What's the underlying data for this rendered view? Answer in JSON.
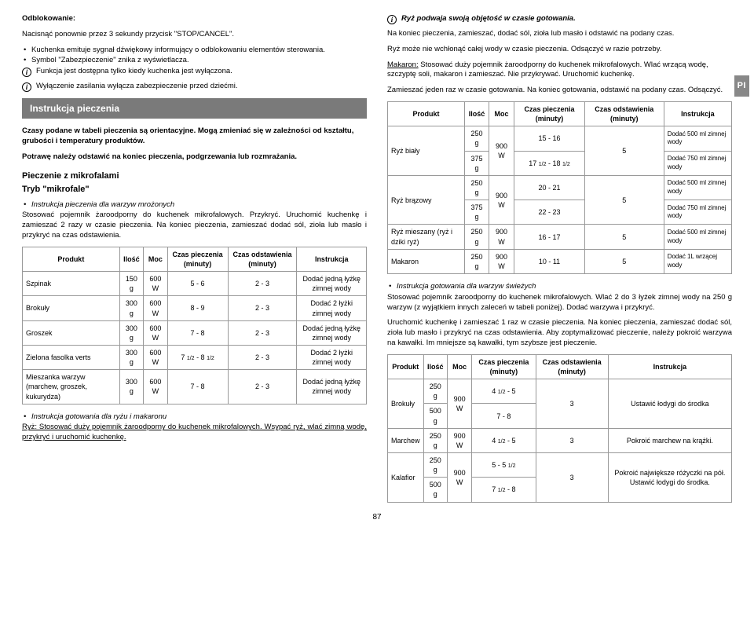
{
  "lang_tab": "PI",
  "left": {
    "unlock_title": "Odblokowanie:",
    "unlock_text": "Nacisnąć ponownie przez 3 sekundy przycisk \"STOP/CANCEL\".",
    "unlock_b1": "Kuchenka emituje sygnał dźwiękowy informujący o odblokowaniu elementów sterowania.",
    "unlock_b2": "Symbol \"Zabezpieczenie\" znika z wyświetlacza.",
    "info1": "Funkcja jest dostępna tylko kiedy kuchenka jest wyłączona.",
    "info2": "Wyłączenie zasilania wyłącza zabezpieczenie przed dziećmi.",
    "section": "Instrukcja pieczenia",
    "p1": "Czasy podane w tabeli pieczenia są orientacyjne. Mogą zmieniać się w zależności od kształtu, grubości i temperatury produktów.",
    "p2": "Potrawę należy odstawić na koniec pieczenia, podgrzewania lub rozmrażania.",
    "sub1a": "Pieczenie z mikrofalami",
    "sub1b": "Tryb \"mikrofale\"",
    "b1": "Instrukcja pieczenia dla warzyw mrożonych",
    "p3": "Stosować pojemnik żaroodporny do kuchenek mikrofalowych. Przykryć. Uruchomić kuchenkę i zamieszać 2 razy w czasie pieczenia. Na koniec pieczenia, zamieszać dodać sól, zioła lub masło i przykryć na czas odstawienia.",
    "table1": {
      "headers": [
        "Produkt",
        "Ilość",
        "Moc",
        "Czas pieczenia (minuty)",
        "Czas odstawienia (minuty)",
        "Instrukcja"
      ],
      "rows": [
        [
          "Szpinak",
          "150 g",
          "600 W",
          "5 - 6",
          "2 - 3",
          "Dodać jedną łyżkę zimnej wody"
        ],
        [
          "Brokuły",
          "300 g",
          "600 W",
          "8 - 9",
          "2 - 3",
          "Dodać 2 łyżki zimnej wody"
        ],
        [
          "Groszek",
          "300 g",
          "600 W",
          "7 - 8",
          "2 - 3",
          "Dodać jedną łyżkę zimnej wody"
        ],
        [
          "Zielona fasolka verts",
          "300 g",
          "600 W",
          "7 1/2 - 8 1/2",
          "2 - 3",
          "Dodać 2 łyżki zimnej wody"
        ],
        [
          "Mieszanka warzyw (marchew, groszek, kukurydza)",
          "300 g",
          "600 W",
          "7 - 8",
          "2 - 3",
          "Dodać jedną łyżkę zimnej wody"
        ]
      ]
    },
    "b2": "Instrukcja gotowania dla ryżu i makaronu",
    "p4": "Ryż: Stosować duży pojemnik żaroodporny do kuchenek mikrofalowych. Wsypać ryż, wlać zimną wodę, przykryć i uruchomić kuchenkę."
  },
  "right": {
    "info1": "Ryż podwaja swoją objętość w czasie gotowania.",
    "p1": "Na koniec pieczenia, zamieszać, dodać sól, zioła lub masło i odstawić na podany czas.",
    "p2": "Ryż może nie wchłonąć całej wody w czasie pieczenia. Odsączyć w razie potrzeby.",
    "p3": "Makaron: Stosować duży pojemnik żaroodporny do kuchenek mikrofalowych. Wlać wrzącą wodę, szczyptę soli, makaron i zamieszać. Nie przykrywać. Uruchomić kuchenkę.",
    "p4": "Zamieszać jeden raz w czasie gotowania. Na koniec gotowania, odstawić na podany czas. Odsączyć.",
    "table2": {
      "headers": [
        "Produkt",
        "Ilość",
        "Moc",
        "Czas pieczenia (minuty)",
        "Czas odstawienia (minuty)",
        "Instrukcja"
      ],
      "rows": [
        {
          "prod": "Ryż biały",
          "qty": [
            "250 g",
            "375 g"
          ],
          "pw": "900 W",
          "time": [
            "15 - 16",
            "17 1/2 - 18 1/2"
          ],
          "rest": "5",
          "instr": [
            "Dodać 500 ml zimnej wody",
            "Dodać 750 ml zimnej wody"
          ]
        },
        {
          "prod": "Ryż brązowy",
          "qty": [
            "250 g",
            "375 g"
          ],
          "pw": "900 W",
          "time": [
            "20 - 21",
            "22 - 23"
          ],
          "rest": "5",
          "instr": [
            "Dodać 500 ml zimnej wody",
            "Dodać 750 ml zimnej wody"
          ]
        },
        {
          "prod": "Ryż mieszany (ryż i dziki ryż)",
          "qty": [
            "250 g"
          ],
          "pw": "900 W",
          "time": [
            "16 - 17"
          ],
          "rest": "5",
          "instr": [
            "Dodać 500 ml zimnej wody"
          ]
        },
        {
          "prod": "Makaron",
          "qty": [
            "250 g"
          ],
          "pw": "900 W",
          "time": [
            "10 - 11"
          ],
          "rest": "5",
          "instr": [
            "Dodać 1L wrzącej wody"
          ]
        }
      ]
    },
    "b1": "Instrukcja gotowania dla warzyw świeżych",
    "p5": "Stosować pojemnik żaroodporny do kuchenek mikrofalowych. Wlać 2 do 3 łyżek zimnej wody na 250 g warzyw (z wyjątkiem innych zaleceń w tabeli poniżej). Dodać warzywa i przykryć.",
    "p6": "Uruchomić kuchenkę i zamieszać 1 raz w czasie pieczenia. Na koniec pieczenia, zamieszać dodać sól, zioła lub masło i przykryć na czas odstawienia. Aby zoptymalizować pieczenie, należy pokroić warzywa na kawałki. Im mniejsze są kawałki, tym szybsze jest pieczenie.",
    "table3": {
      "headers": [
        "Produkt",
        "Ilość",
        "Moc",
        "Czas pieczenia (minuty)",
        "Czas odstawienia (minuty)",
        "Instrukcja"
      ],
      "rows": [
        {
          "prod": "Brokuły",
          "qty": [
            "250 g",
            "500 g"
          ],
          "pw": "900 W",
          "time": [
            "4 1/2 - 5",
            "7 - 8"
          ],
          "rest": "3",
          "instr": "Ustawić łodygi do środka"
        },
        {
          "prod": "Marchew",
          "qty": [
            "250 g"
          ],
          "pw": "900 W",
          "time": [
            "4 1/2 - 5"
          ],
          "rest": "3",
          "instr": "Pokroić marchew na krążki."
        },
        {
          "prod": "Kalafior",
          "qty": [
            "250 g",
            "500 g"
          ],
          "pw": "900 W",
          "time": [
            "5 - 5 1/2",
            "7 1/2 - 8"
          ],
          "rest": "3",
          "instr": "Pokroić największe różyczki na pół. Ustawić łodygi do środka."
        }
      ]
    }
  },
  "page": "87"
}
